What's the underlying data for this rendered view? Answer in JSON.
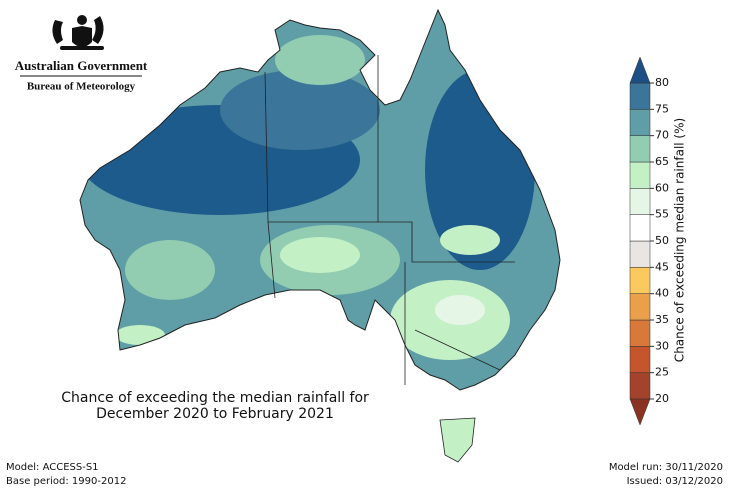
{
  "header": {
    "agency": "Australian Government",
    "bureau": "Bureau of Meteorology"
  },
  "map": {
    "title_lines": [
      "Chance of exceeding the median rainfall for",
      "December 2020 to February 2021"
    ]
  },
  "colorbar": {
    "label": "Chance of exceeding median rainfall (%)",
    "lim": [
      20,
      80
    ],
    "ticks": [
      20,
      25,
      30,
      35,
      40,
      45,
      50,
      55,
      60,
      65,
      70,
      75,
      80
    ],
    "colors": [
      "#a4432b",
      "#c4552c",
      "#d8793a",
      "#eaa04a",
      "#fbc95e",
      "#e8e5e2",
      "#ffffff",
      "#e6f6e6",
      "#c4f0c6",
      "#92cdb2",
      "#5f9ea6",
      "#3b7599"
    ],
    "under_color": "#8a3322",
    "over_color": "#1d4f85"
  },
  "footer": {
    "model": "Model: ACCESS-S1",
    "base_period": "Base period: 1990-2012",
    "model_run": "Model run: 30/11/2020",
    "issued": "Issued: 03/12/2020"
  }
}
